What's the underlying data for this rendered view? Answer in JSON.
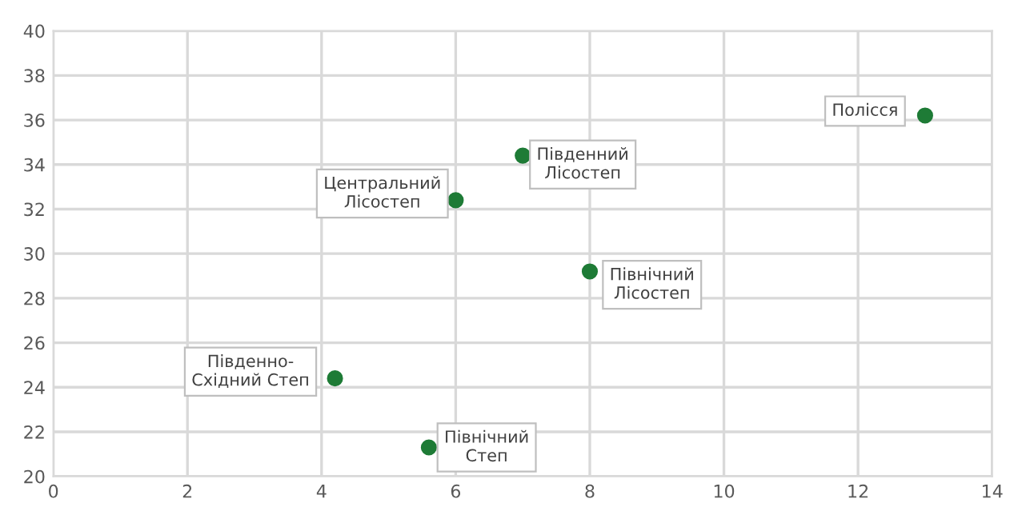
{
  "chart_data": {
    "type": "scatter",
    "x": [
      13.0,
      7.0,
      6.0,
      8.0,
      4.2,
      5.6
    ],
    "values": [
      36.2,
      34.4,
      32.4,
      29.2,
      24.4,
      21.3
    ],
    "color": "#1e7b36",
    "marker": "circle",
    "xlim": [
      0,
      14
    ],
    "ylim": [
      20,
      40
    ],
    "xticks": [
      0,
      2,
      4,
      6,
      8,
      10,
      12,
      14
    ],
    "yticks": [
      20,
      22,
      24,
      26,
      28,
      30,
      32,
      34,
      36,
      38,
      40
    ],
    "grid": true,
    "annotations": [
      {
        "text": "Полісся",
        "x": 13.0,
        "y": 36.2
      },
      {
        "text": "Південний\nЛісостеп",
        "x": 7.0,
        "y": 34.4
      },
      {
        "text": "Центральний\nЛісостеп",
        "x": 6.0,
        "y": 32.4
      },
      {
        "text": "Північний\nЛісостеп",
        "x": 8.0,
        "y": 29.2
      },
      {
        "text": "Південно-\nСхідний Степ",
        "x": 4.2,
        "y": 24.4
      },
      {
        "text": "Північний\nСтеп",
        "x": 5.6,
        "y": 21.3
      }
    ]
  }
}
